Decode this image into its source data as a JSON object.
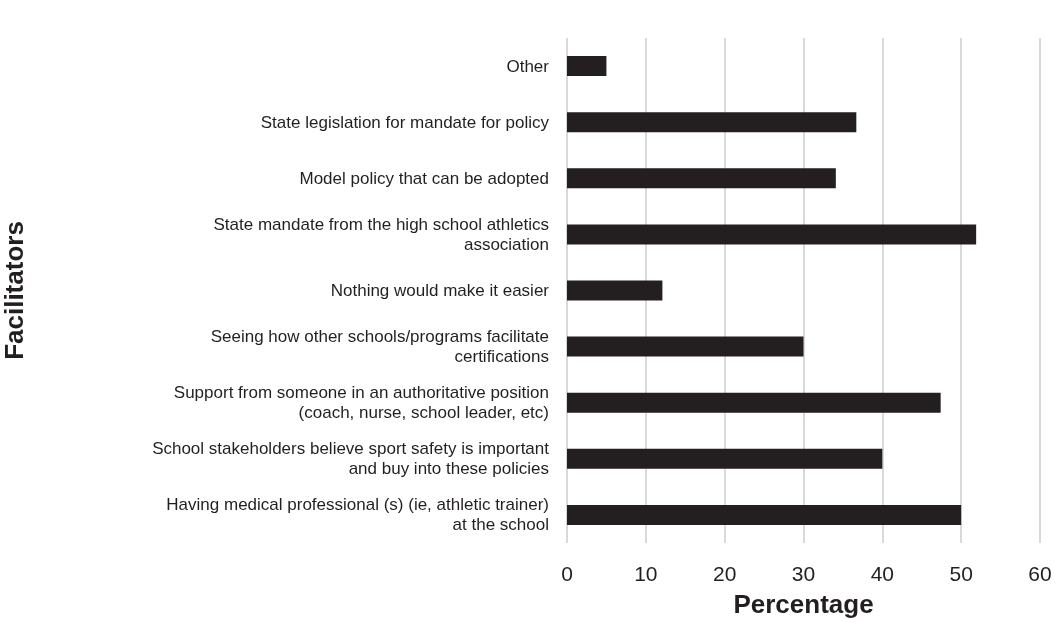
{
  "chart_data": {
    "type": "bar",
    "orientation": "horizontal",
    "xlabel": "Percentage",
    "ylabel": "Facilitators",
    "categories": [
      "Other",
      "State legislation for mandate for policy",
      "Model policy that can be adopted",
      "State mandate from the high school athletics\nassociation",
      "Nothing would make it easier",
      "Seeing how other schools/programs facilitate\ncertifications",
      "Support from someone in an authoritative position\n(coach, nurse, school leader, etc)",
      "School stakeholders believe sport safety is important\nand buy into these policies",
      "Having medical professional (s) (ie, athletic trainer)\nat the school"
    ],
    "values": [
      5,
      36.7,
      34.1,
      51.9,
      12.1,
      30,
      47.4,
      40,
      50
    ],
    "color": "#231f20",
    "xlim": [
      0,
      60
    ],
    "xticks": [
      0,
      10,
      20,
      30,
      40,
      50,
      60
    ],
    "grid": "x"
  }
}
